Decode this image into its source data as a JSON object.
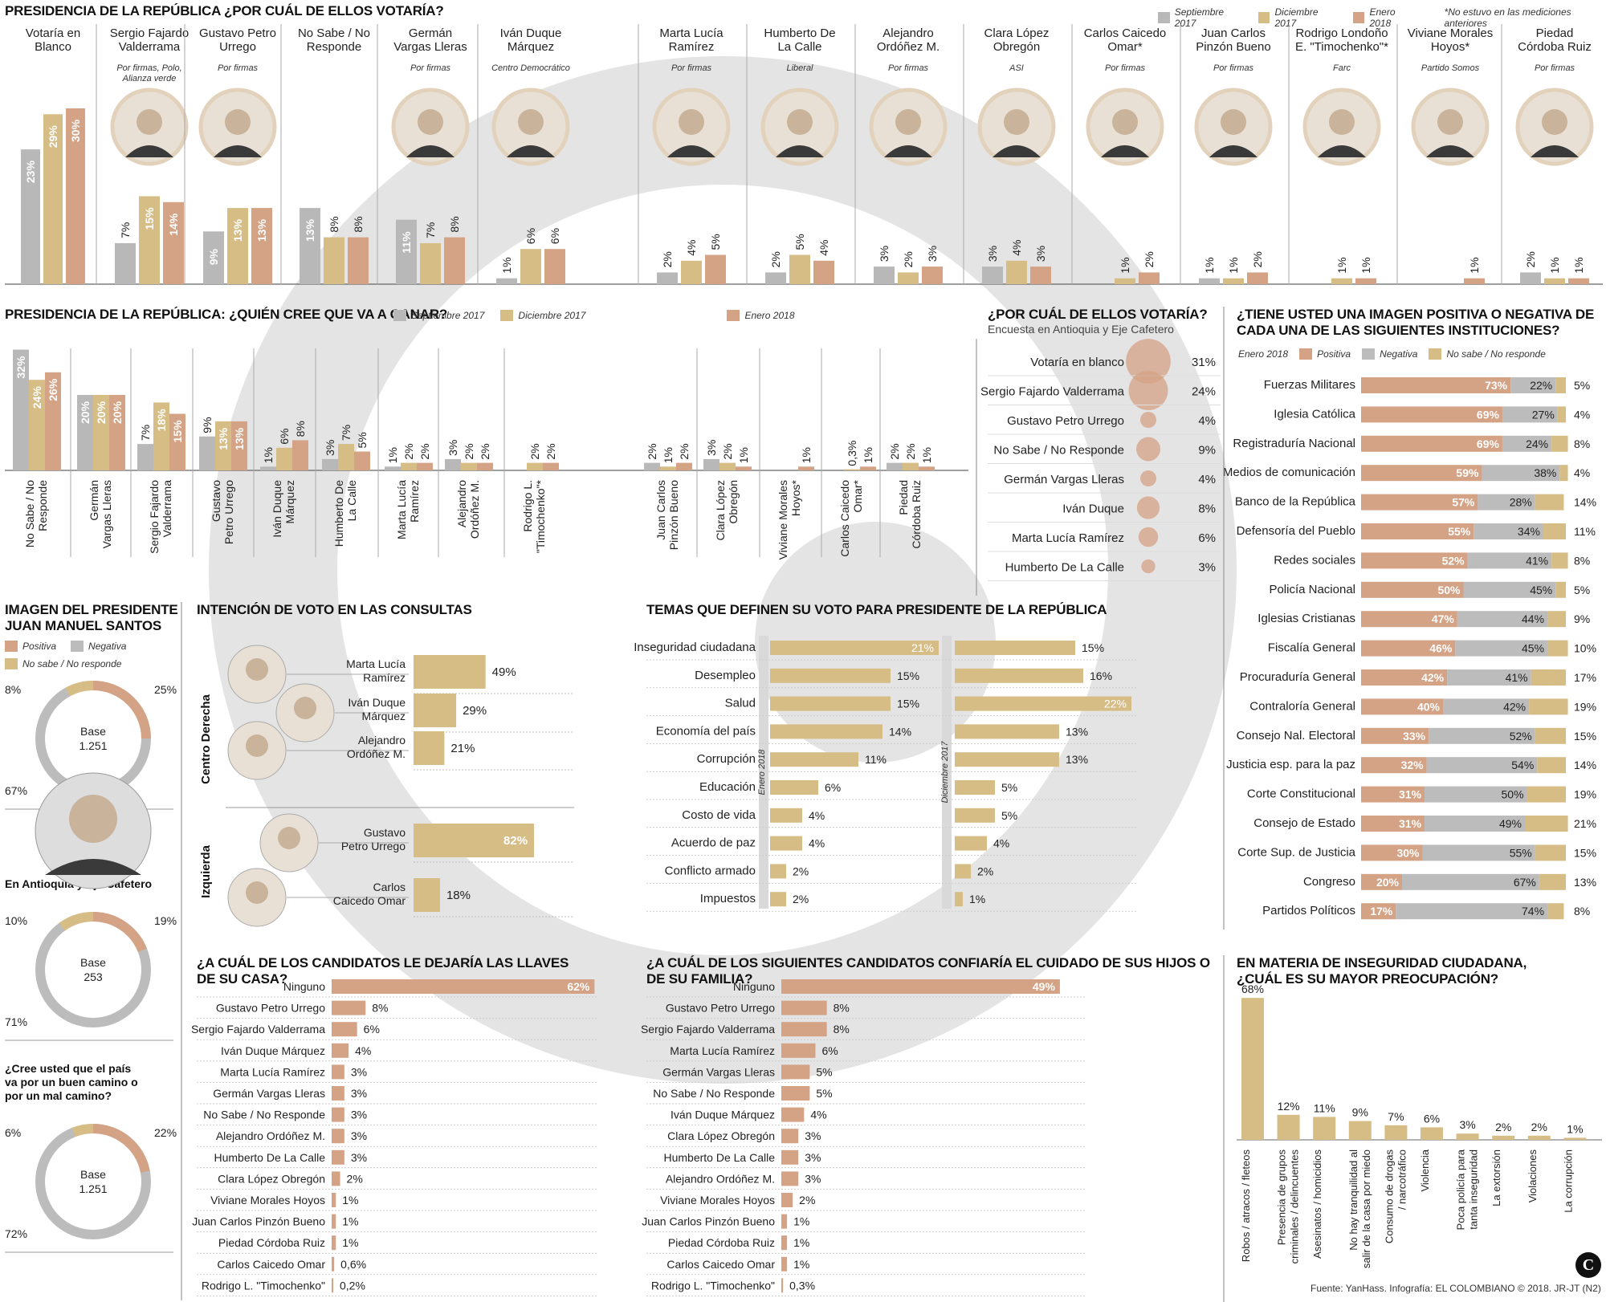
{
  "colors": {
    "sep": "#b8b8b8",
    "dic": "#d6bd86",
    "ene": "#d4a284",
    "pos": "#d4a284",
    "neg": "#bcbcbc",
    "ns": "#d6bd86",
    "gray": "#bdbdbd"
  },
  "footer": "Fuente: YanHass. Infografía: EL COLOMBIANO © 2018. JR-JT (N2)",
  "chart_data": [
    {
      "id": "votaria",
      "type": "bar",
      "title": "PRESIDENCIA DE LA REPÚBLICA ¿POR CUÁL DE ELLOS VOTARÍA?",
      "note": "*No estuvo en las mediciones anteriores",
      "series_names": [
        "Septiembre 2017",
        "Diciembre 2017",
        "Enero 2018"
      ],
      "categories": [
        {
          "name": "Votaría en\nBlanco",
          "party": "",
          "values": [
            23,
            29,
            30
          ]
        },
        {
          "name": "Sergio Fajardo\nValderrama",
          "party": "Por firmas, Polo,\nAlianza verde",
          "values": [
            7,
            15,
            14
          ]
        },
        {
          "name": "Gustavo Petro\nUrrego",
          "party": "Por firmas",
          "values": [
            9,
            13,
            13
          ]
        },
        {
          "name": "No Sabe / No\nResponde",
          "party": "",
          "values": [
            13,
            8,
            8
          ]
        },
        {
          "name": "Germán\nVargas Lleras",
          "party": "Por firmas",
          "values": [
            11,
            7,
            8
          ]
        },
        {
          "name": "Iván Duque\nMárquez",
          "party": "Centro Democrático",
          "values": [
            1,
            6,
            6
          ]
        },
        {
          "name": "Marta Lucía\nRamírez",
          "party": "Por firmas",
          "values": [
            2,
            4,
            5
          ]
        },
        {
          "name": "Humberto De\nLa Calle",
          "party": "Liberal",
          "values": [
            2,
            5,
            4
          ]
        },
        {
          "name": "Alejandro\nOrdóñez M.",
          "party": "Por firmas",
          "values": [
            3,
            2,
            3
          ]
        },
        {
          "name": "Clara López\nObregón",
          "party": "ASI",
          "values": [
            3,
            4,
            3
          ]
        },
        {
          "name": "Carlos Caicedo\nOmar*",
          "party": "Por firmas",
          "values": [
            null,
            1,
            2
          ]
        },
        {
          "name": "Juan Carlos\nPinzón Bueno",
          "party": "Por firmas",
          "values": [
            1,
            1,
            2
          ]
        },
        {
          "name": "Rodrigo Londoño\nE. \"Timochenko\"*",
          "party": "Farc",
          "values": [
            null,
            1,
            1
          ]
        },
        {
          "name": "Viviane Morales\nHoyos*",
          "party": "Partido Somos",
          "values": [
            null,
            null,
            1
          ]
        },
        {
          "name": "Piedad\nCórdoba Ruiz",
          "party": "Por firmas",
          "values": [
            2,
            1,
            1
          ]
        }
      ]
    },
    {
      "id": "ganar",
      "type": "bar",
      "title": "PRESIDENCIA DE LA REPÚBLICA: ¿QUIÉN CREE QUE VA A GANAR?",
      "series_names": [
        "Septiembre 2017",
        "Diciembre 2017",
        "Enero 2018"
      ],
      "categories": [
        {
          "name": "No Sabe / No\nResponde",
          "values": [
            32,
            24,
            26
          ]
        },
        {
          "name": "Germán\nVargas Lleras",
          "values": [
            20,
            20,
            20
          ]
        },
        {
          "name": "Sergio Fajardo\nValderrama",
          "values": [
            7,
            18,
            15
          ]
        },
        {
          "name": "Gustavo\nPetro Urrego",
          "values": [
            9,
            13,
            13
          ]
        },
        {
          "name": "Iván Duque\nMárquez",
          "values": [
            1,
            6,
            8
          ]
        },
        {
          "name": "Humberto De\nLa Calle",
          "values": [
            3,
            7,
            5
          ]
        },
        {
          "name": "Marta Lucía\nRamírez",
          "values": [
            1,
            2,
            2
          ]
        },
        {
          "name": "Alejandro\nOrdóñez M.",
          "values": [
            3,
            2,
            2
          ]
        },
        {
          "name": "Rodrigo L.\n\"Timochenko\"*",
          "values": [
            null,
            2,
            2
          ]
        },
        {
          "name": "Juan Carlos\nPinzón Bueno",
          "values": [
            2,
            1,
            2
          ]
        },
        {
          "name": "Clara López\nObregón",
          "values": [
            3,
            2,
            1
          ]
        },
        {
          "name": "Viviane Morales\nHoyos*",
          "values": [
            null,
            null,
            1
          ]
        },
        {
          "name": "Carlos Caicedo\nOmar*",
          "values": [
            null,
            "0,3",
            1
          ]
        },
        {
          "name": "Piedad\nCórdoba Ruiz",
          "values": [
            2,
            2,
            1
          ]
        }
      ]
    },
    {
      "id": "antioquia",
      "type": "bubble",
      "title": "¿POR CUÁL DE ELLOS VOTARÍA?",
      "subtitle": "Encuesta en Antioquia y Eje Cafetero",
      "categories": [
        "Votaría en blanco",
        "Sergio Fajardo Valderrama",
        "Gustavo Petro Urrego",
        "No Sabe / No Responde",
        "Germán Vargas Lleras",
        "Iván Duque",
        "Marta Lucía Ramírez",
        "Humberto De La Calle"
      ],
      "values": [
        31,
        24,
        4,
        9,
        4,
        8,
        6,
        3
      ]
    },
    {
      "id": "instituciones",
      "type": "stacked-bar",
      "title": "¿TIENE USTED UNA IMAGEN POSITIVA O NEGATIVA DE\nCADA UNA DE LAS SIGUIENTES INSTITUCIONES?",
      "series_names": [
        "Positiva",
        "Negativa",
        "No sabe / No responde"
      ],
      "period": "Enero 2018",
      "categories": [
        "Fuerzas Militares",
        "Iglesia Católica",
        "Registraduría Nacional",
        "Medios de comunicación",
        "Banco de la República",
        "Defensoría del Pueblo",
        "Redes sociales",
        "Policía Nacional",
        "Iglesias Cristianas",
        "Fiscalía General",
        "Procuraduría General",
        "Contraloría General",
        "Consejo Nal. Electoral",
        "Justicia esp. para la paz",
        "Corte Constitucional",
        "Consejo de Estado",
        "Corte Sup. de Justicia",
        "Congreso",
        "Partidos Políticos"
      ],
      "pos": [
        73,
        69,
        69,
        59,
        57,
        55,
        52,
        50,
        47,
        46,
        42,
        40,
        33,
        32,
        31,
        31,
        30,
        20,
        17
      ],
      "neg": [
        22,
        27,
        24,
        38,
        28,
        34,
        41,
        45,
        44,
        45,
        41,
        42,
        52,
        54,
        50,
        49,
        55,
        67,
        74
      ],
      "ns": [
        5,
        4,
        8,
        4,
        14,
        11,
        8,
        5,
        9,
        10,
        17,
        19,
        15,
        14,
        19,
        21,
        15,
        13,
        8
      ]
    },
    {
      "id": "santos",
      "type": "donut",
      "title": "IMAGEN DEL PRESIDENTE\nJUAN MANUEL SANTOS",
      "series_names": [
        "Positiva",
        "Negativa",
        "No sabe / No responde"
      ],
      "charts": [
        {
          "pos": 25,
          "neg": 67,
          "ns": 8,
          "base_label": "Base",
          "base": "1.251",
          "heading": ""
        },
        {
          "pos": 19,
          "neg": 71,
          "ns": 10,
          "base_label": "Base",
          "base": "253",
          "heading": "En Antioquia y Eje Cafetero"
        },
        {
          "pos": 22,
          "neg": 72,
          "ns": 6,
          "base_label": "Base",
          "base": "1.251",
          "heading": "¿Cree usted que el país\nva por un buen camino o\npor un mal camino?"
        }
      ]
    },
    {
      "id": "consultas",
      "type": "bar",
      "title": "INTENCIÓN DE VOTO EN LAS CONSULTAS",
      "groups": [
        {
          "group": "Centro Derecha",
          "items": [
            {
              "name": "Marta Lucía\nRamírez",
              "value": 49
            },
            {
              "name": "Iván Duque\nMárquez",
              "value": 29
            },
            {
              "name": "Alejandro\nOrdóñez M.",
              "value": 21
            }
          ]
        },
        {
          "group": "Izquierda",
          "items": [
            {
              "name": "Gustavo\nPetro Urrego",
              "value": 82
            },
            {
              "name": "Carlos\nCaicedo Omar",
              "value": 18
            }
          ]
        }
      ]
    },
    {
      "id": "temas",
      "type": "bar",
      "title": "TEMAS QUE DEFINEN SU VOTO PARA PRESIDENTE DE LA REPÚBLICA",
      "categories": [
        "Inseguridad ciudadana",
        "Desempleo",
        "Salud",
        "Economía del país",
        "Corrupción",
        "Educación",
        "Costo de vida",
        "Acuerdo de paz",
        "Conflicto armado",
        "Impuestos"
      ],
      "enero_label": "Enero 2018",
      "diciembre_label": "Diciembre 2017",
      "enero": [
        21,
        15,
        15,
        14,
        11,
        6,
        4,
        4,
        2,
        2
      ],
      "diciembre": [
        15,
        16,
        22,
        13,
        13,
        5,
        5,
        4,
        2,
        1
      ]
    },
    {
      "id": "llaves",
      "type": "bar",
      "title": "¿A CUÁL DE LOS CANDIDATOS LE DEJARÍA LAS LLAVES DE SU CASA?",
      "categories": [
        "Ninguno",
        "Gustavo Petro Urrego",
        "Sergio Fajardo Valderrama",
        "Iván Duque Márquez",
        "Marta Lucía Ramírez",
        "Germán Vargas Lleras",
        "No Sabe / No Responde",
        "Alejandro Ordóñez M.",
        "Humberto De La Calle",
        "Clara López Obregón",
        "Viviane Morales Hoyos",
        "Juan Carlos Pinzón Bueno",
        "Piedad Córdoba Ruiz",
        "Carlos Caicedo Omar",
        "Rodrigo L. \"Timochenko\""
      ],
      "values": [
        62,
        8,
        6,
        4,
        3,
        3,
        3,
        3,
        3,
        2,
        1,
        1,
        1,
        0.6,
        0.2
      ],
      "labels": [
        "62%",
        "8%",
        "6%",
        "4%",
        "3%",
        "3%",
        "3%",
        "3%",
        "3%",
        "2%",
        "1%",
        "1%",
        "1%",
        "0,6%",
        "0,2%"
      ]
    },
    {
      "id": "hijos",
      "type": "bar",
      "title": "¿A CUÁL DE LOS SIGUIENTES CANDIDATOS CONFIARÍA EL CUIDADO DE SUS HIJOS O DE SU FAMILIA?",
      "categories": [
        "Ninguno",
        "Gustavo Petro Urrego",
        "Sergio Fajardo Valderrama",
        "Marta Lucía Ramírez",
        "Germán Vargas Lleras",
        "No Sabe / No Responde",
        "Iván Duque Márquez",
        "Clara López Obregón",
        "Humberto De La Calle",
        "Alejandro Ordóñez M.",
        "Viviane Morales Hoyos",
        "Juan Carlos Pinzón Bueno",
        "Piedad Córdoba Ruiz",
        "Carlos Caicedo Omar",
        "Rodrigo L. \"Timochenko\""
      ],
      "values": [
        49,
        8,
        8,
        6,
        5,
        5,
        4,
        3,
        3,
        3,
        2,
        1,
        1,
        1,
        0.3
      ],
      "labels": [
        "49%",
        "8%",
        "8%",
        "6%",
        "5%",
        "5%",
        "4%",
        "3%",
        "3%",
        "3%",
        "2%",
        "1%",
        "1%",
        "1%",
        "0,3%"
      ]
    },
    {
      "id": "inseguridad",
      "type": "bar",
      "title": "EN MATERIA DE INSEGURIDAD CIUDADANA,\n¿CUÁL ES SU MAYOR PREOCUPACIÓN?",
      "categories": [
        "Robos / atracos / fleteos",
        "Presencia de grupos\ncriminales / delincuentes",
        "Asesinatos / homicidios",
        "No hay tranquilidad al\nsalir de la casa por miedo",
        "Consumo de drogas\n/ narcotráfico",
        "Violencia",
        "Poca policía para\ntanta inseguridad",
        "La extorsión",
        "Violaciones",
        "La corrupción"
      ],
      "values": [
        68,
        12,
        11,
        9,
        7,
        6,
        3,
        2,
        2,
        1
      ]
    }
  ]
}
